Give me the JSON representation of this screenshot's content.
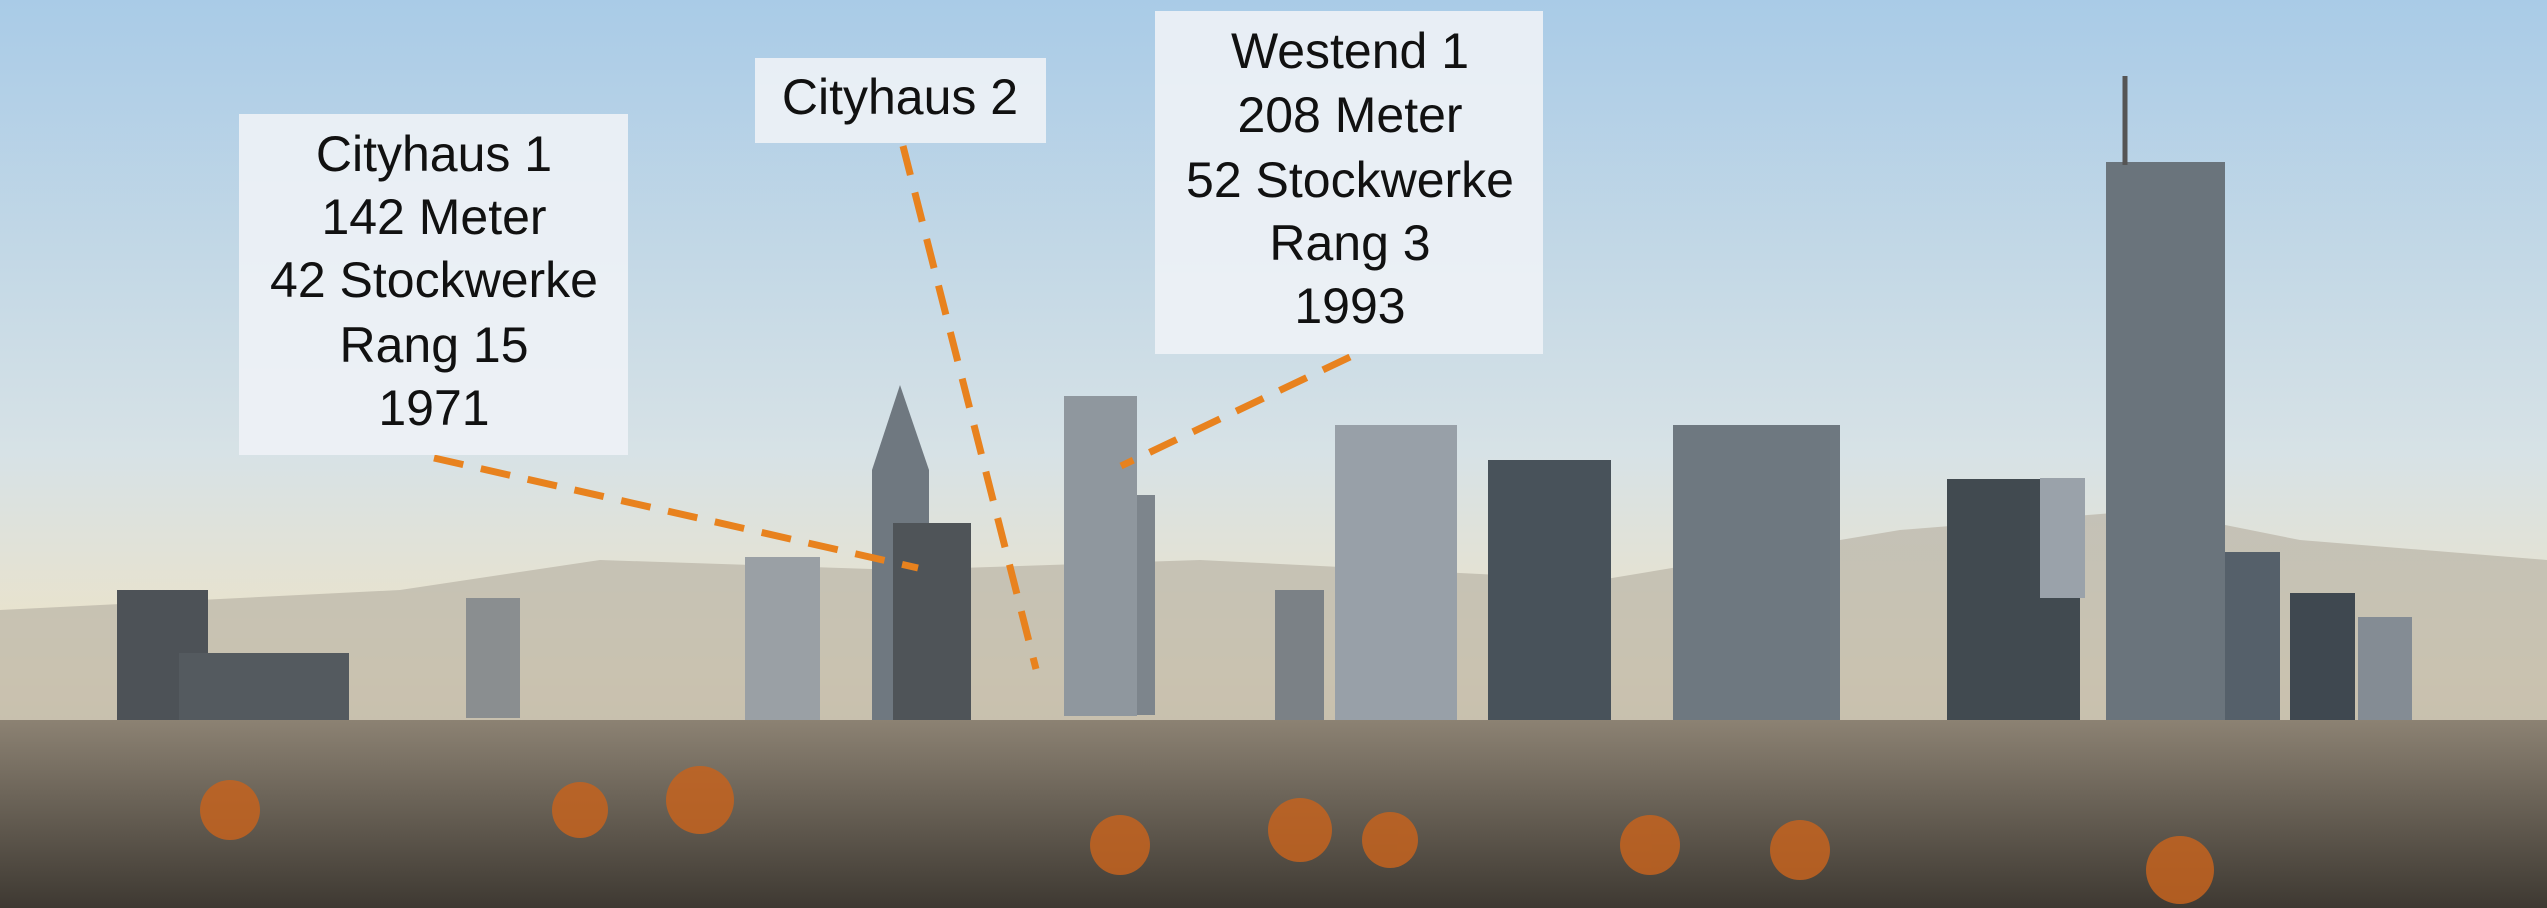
{
  "annotations": [
    {
      "lines": [
        "Cityhaus 1",
        "142 Meter",
        "42 Stockwerke",
        "Rang 15",
        "1971"
      ]
    },
    {
      "lines": [
        "Cityhaus 2"
      ]
    },
    {
      "lines": [
        "Westend 1",
        "208 Meter",
        "52 Stockwerke",
        "Rang 3",
        "1993"
      ]
    }
  ]
}
